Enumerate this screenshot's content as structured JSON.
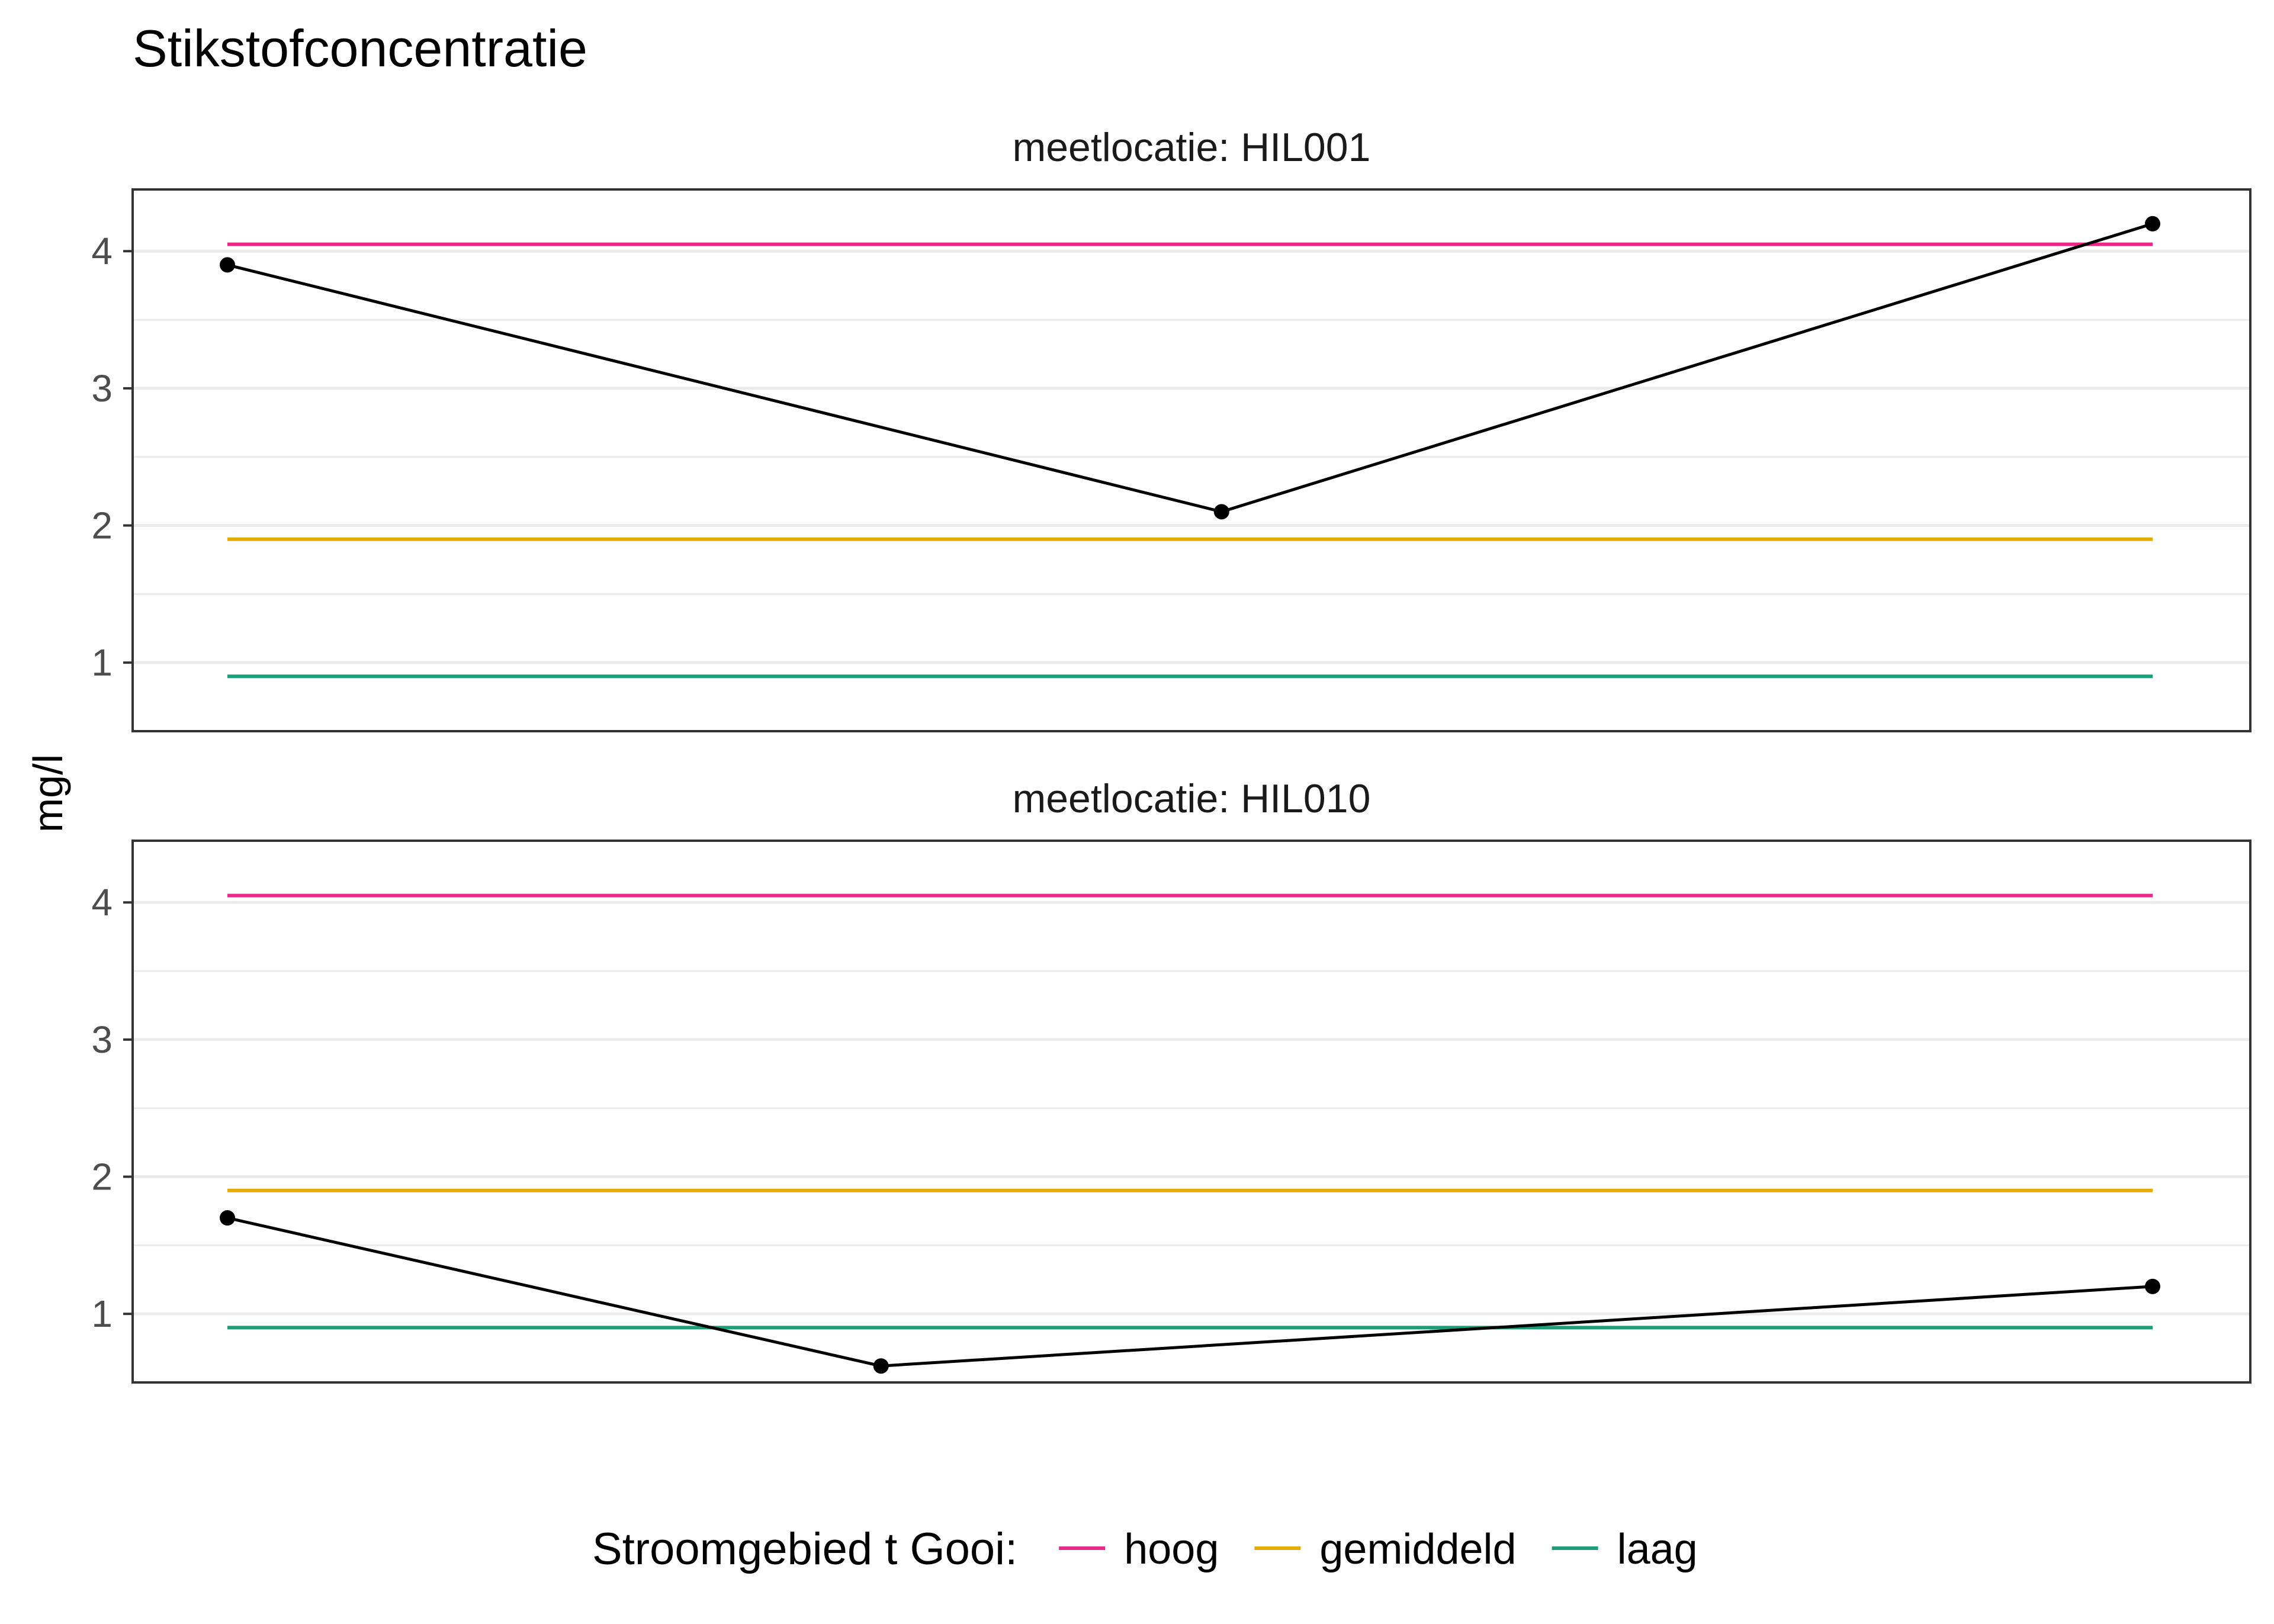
{
  "chart_data": {
    "type": "line",
    "title": "Stikstofconcentratie",
    "ylabel": "mg/l",
    "xlabel": "",
    "ylim": [
      0.5,
      4.45
    ],
    "yticks": [
      1,
      2,
      3,
      4
    ],
    "grid": true,
    "legend_position": "bottom",
    "legend": {
      "title": "Stroomgebied t Gooi:",
      "entries": [
        {
          "label": "hoog",
          "value": 4.05,
          "color": "#e7298a"
        },
        {
          "label": "gemiddeld",
          "value": 1.9,
          "color": "#e6ab02"
        },
        {
          "label": "laag",
          "value": 0.9,
          "color": "#1b9e77"
        }
      ]
    },
    "panels": [
      {
        "strip": "meetlocatie: HIL001",
        "series": [
          {
            "x": [
              0.0,
              0.5164,
              1.0
            ],
            "y": [
              3.9,
              2.1,
              4.2
            ]
          }
        ]
      },
      {
        "strip": "meetlocatie: HIL010",
        "series": [
          {
            "x": [
              0.0,
              0.3395,
              1.0
            ],
            "y": [
              1.7,
              0.62,
              1.2
            ]
          }
        ]
      }
    ]
  }
}
